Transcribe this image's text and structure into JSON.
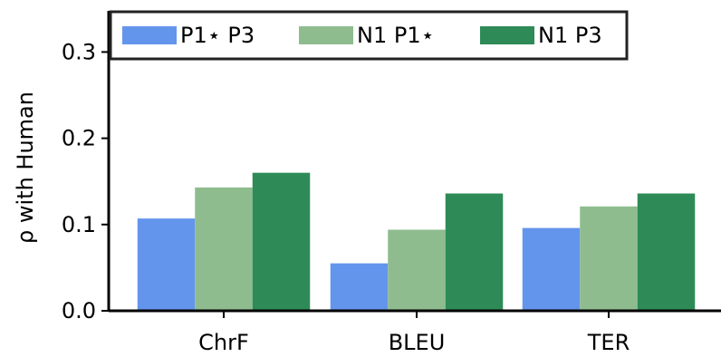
{
  "chart_data": {
    "type": "bar",
    "title": "",
    "xlabel": "",
    "ylabel": "ρ with Human",
    "categories": [
      "ChrF",
      "BLEU",
      "TER"
    ],
    "ylim": [
      0,
      0.34
    ],
    "yticks": [
      0.0,
      0.1,
      0.2,
      0.3
    ],
    "ytick_labels": [
      "0.0",
      "0.1",
      "0.2",
      "0.3"
    ],
    "grid": false,
    "legend_position": "top-left",
    "series": [
      {
        "name": "P1⋆ P3",
        "color": "#6495ED",
        "values": [
          0.107,
          0.055,
          0.096
        ]
      },
      {
        "name": "N1 P1⋆",
        "color": "#8FBC8F",
        "values": [
          0.143,
          0.094,
          0.121
        ]
      },
      {
        "name": "N1 P3",
        "color": "#2E8B57",
        "values": [
          0.16,
          0.136,
          0.136
        ]
      }
    ]
  }
}
